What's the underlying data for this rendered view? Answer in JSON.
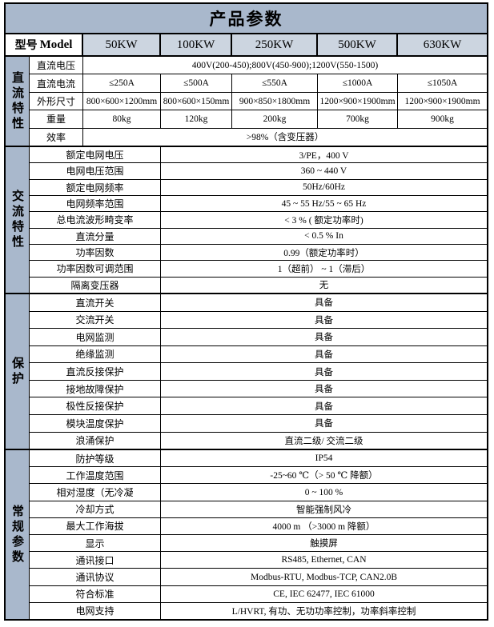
{
  "title": "产品参数",
  "colors": {
    "title_bg": "#a9b8cc",
    "header_bg": "#ccd5e0",
    "category_bg": "#a9b8cc",
    "border": "#000000",
    "cell_bg": "#ffffff"
  },
  "header": {
    "model_label": "型号",
    "model_en": "Model",
    "models": [
      "50KW",
      "100KW",
      "250KW",
      "500KW",
      "630KW"
    ]
  },
  "dc": {
    "category": "直流特性",
    "rows": [
      {
        "label": "直流电压",
        "value": "400V(200-450);800V(450-900);1200V(550-1500)"
      },
      {
        "label": "直流电流",
        "values": [
          "≤250A",
          "≤500A",
          "≤550A",
          "≤1000A",
          "≤1050A"
        ]
      },
      {
        "label": "外形尺寸",
        "values": [
          "800×600×1200mm",
          "800×600×150mm",
          "900×850×1800mm",
          "1200×900×1900mm",
          "1200×900×1900mm"
        ]
      },
      {
        "label": "重量",
        "values": [
          "80kg",
          "120kg",
          "200kg",
          "700kg",
          "900kg"
        ]
      },
      {
        "label": "效率",
        "value": ">98%（含变压器）"
      }
    ]
  },
  "ac": {
    "category": "交流特性",
    "rows": [
      {
        "label": "额定电网电压",
        "value": "3/PE，400 V"
      },
      {
        "label": "电网电压范围",
        "value": "360 ~ 440 V"
      },
      {
        "label": "额定电网频率",
        "value": "50Hz/60Hz"
      },
      {
        "label": "电网频率范围",
        "value": "45 ~ 55 Hz/55 ~ 65 Hz"
      },
      {
        "label": "总电流波形畸变率",
        "value": "< 3 % ( 额定功率时)"
      },
      {
        "label": "直流分量",
        "value": "< 0.5 % In"
      },
      {
        "label": "功率因数",
        "value": "0.99（额定功率时）"
      },
      {
        "label": "功率因数可调范围",
        "value": "1（超前） ~ 1（滞后）"
      },
      {
        "label": "隔离变压器",
        "value": "无"
      }
    ]
  },
  "prot": {
    "category": "保护",
    "rows": [
      {
        "label": "直流开关",
        "value": "具备"
      },
      {
        "label": "交流开关",
        "value": "具备"
      },
      {
        "label": "电网监测",
        "value": "具备"
      },
      {
        "label": "绝缘监测",
        "value": "具备"
      },
      {
        "label": "直流反接保护",
        "value": "具备"
      },
      {
        "label": "接地故障保护",
        "value": "具备"
      },
      {
        "label": "极性反接保护",
        "value": "具备"
      },
      {
        "label": "模块温度保护",
        "value": "具备"
      },
      {
        "label": "浪涌保护",
        "value": "直流二级/ 交流二级"
      }
    ]
  },
  "gen": {
    "category": "常规参数",
    "rows": [
      {
        "label": "防护等级",
        "value": "IP54"
      },
      {
        "label": "工作温度范围",
        "value": "-25~60 ℃（> 50 ℃ 降额）"
      },
      {
        "label": "相对湿度（无冷凝",
        "value": "0 ~ 100 %"
      },
      {
        "label": "冷却方式",
        "value": "智能强制风冷"
      },
      {
        "label": "最大工作海拔",
        "value": "4000 m （>3000 m 降额）"
      },
      {
        "label": "显示",
        "value": "触摸屏"
      },
      {
        "label": "通讯接口",
        "value": "RS485, Ethernet, CAN"
      },
      {
        "label": "通讯协议",
        "value": "Modbus-RTU, Modbus-TCP, CAN2.0B"
      },
      {
        "label": "符合标准",
        "value": "CE, IEC 62477, IEC 61000"
      },
      {
        "label": "电网支持",
        "value": "L/HVRT, 有功、无功功率控制，功率斜率控制"
      }
    ]
  }
}
